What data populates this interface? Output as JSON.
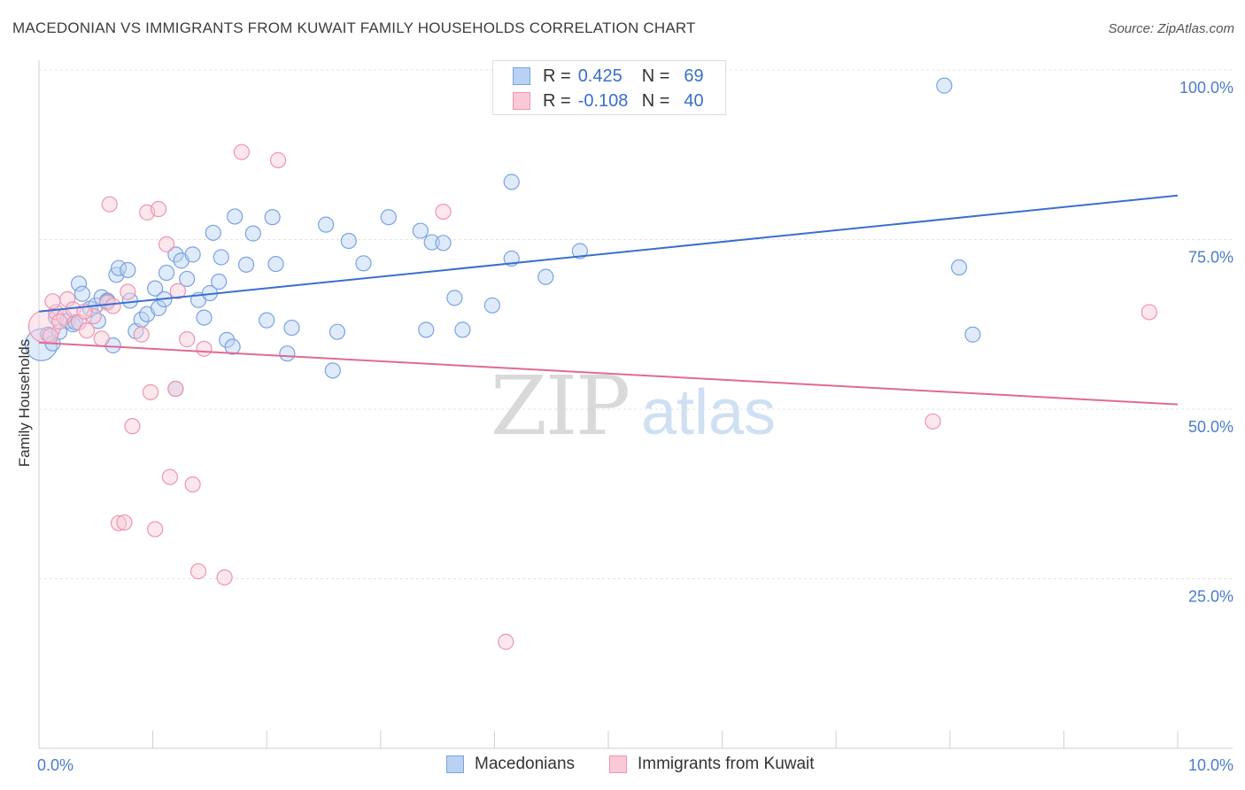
{
  "title": "MACEDONIAN VS IMMIGRANTS FROM KUWAIT FAMILY HOUSEHOLDS CORRELATION CHART",
  "source": "Source: ZipAtlas.com",
  "watermark": {
    "zip": "ZIP",
    "atlas": "atlas"
  },
  "legend": {
    "r_label": "R =",
    "n_label": "N =",
    "rows": [
      {
        "name": "Macedonians",
        "r": "0.425",
        "n": "69",
        "fill": "#b9d2f3",
        "stroke": "#7aa3e0"
      },
      {
        "name": "Immigrants from Kuwait",
        "r": "-0.108",
        "n": "40",
        "fill": "#f9c9d8",
        "stroke": "#ee95b0"
      }
    ]
  },
  "chart_data": {
    "type": "scatter",
    "title": "MACEDONIAN VS IMMIGRANTS FROM KUWAIT FAMILY HOUSEHOLDS CORRELATION CHART",
    "xlabel": "",
    "ylabel": "Family Households",
    "xlim": [
      0,
      10
    ],
    "ylim": [
      0,
      100
    ],
    "x_tick_labels": [
      {
        "value": 0,
        "label": "0.0%"
      },
      {
        "value": 10,
        "label": "10.0%"
      }
    ],
    "y_tick_labels": [
      {
        "value": 25,
        "label": "25.0%"
      },
      {
        "value": 50,
        "label": "50.0%"
      },
      {
        "value": 75,
        "label": "75.0%"
      },
      {
        "value": 100,
        "label": "100.0%"
      }
    ],
    "grid": true,
    "series": [
      {
        "name": "Macedonians",
        "color": "#7aa3e0",
        "fill": "#b9d2f3",
        "line_color": "#3a6fd0",
        "trend": {
          "x0": 0,
          "y0": 64.4,
          "x1": 10,
          "y1": 81.5
        },
        "points": [
          {
            "x": 0.02,
            "y": 59.5,
            "size": 18
          },
          {
            "x": 0.08,
            "y": 61.0
          },
          {
            "x": 0.12,
            "y": 59.7
          },
          {
            "x": 0.15,
            "y": 63.5
          },
          {
            "x": 0.18,
            "y": 61.4
          },
          {
            "x": 0.25,
            "y": 63.0
          },
          {
            "x": 0.3,
            "y": 62.5
          },
          {
            "x": 0.32,
            "y": 62.8
          },
          {
            "x": 0.35,
            "y": 68.5
          },
          {
            "x": 0.38,
            "y": 67.0
          },
          {
            "x": 0.45,
            "y": 64.8
          },
          {
            "x": 0.5,
            "y": 65.3
          },
          {
            "x": 0.52,
            "y": 63.0
          },
          {
            "x": 0.55,
            "y": 66.5
          },
          {
            "x": 0.6,
            "y": 66.0
          },
          {
            "x": 0.65,
            "y": 59.4
          },
          {
            "x": 0.68,
            "y": 69.8
          },
          {
            "x": 0.7,
            "y": 70.8
          },
          {
            "x": 0.78,
            "y": 70.5
          },
          {
            "x": 0.8,
            "y": 66.0
          },
          {
            "x": 0.85,
            "y": 61.5
          },
          {
            "x": 0.9,
            "y": 63.2
          },
          {
            "x": 0.95,
            "y": 64.0
          },
          {
            "x": 1.02,
            "y": 67.8
          },
          {
            "x": 1.05,
            "y": 64.9
          },
          {
            "x": 1.1,
            "y": 66.2
          },
          {
            "x": 1.12,
            "y": 70.1
          },
          {
            "x": 1.2,
            "y": 72.8
          },
          {
            "x": 1.25,
            "y": 71.9
          },
          {
            "x": 1.3,
            "y": 69.2
          },
          {
            "x": 1.35,
            "y": 72.8
          },
          {
            "x": 1.4,
            "y": 66.1
          },
          {
            "x": 1.45,
            "y": 63.5
          },
          {
            "x": 1.5,
            "y": 67.1
          },
          {
            "x": 1.53,
            "y": 76.0
          },
          {
            "x": 1.58,
            "y": 68.8
          },
          {
            "x": 1.6,
            "y": 72.4
          },
          {
            "x": 1.65,
            "y": 60.2
          },
          {
            "x": 1.7,
            "y": 59.2
          },
          {
            "x": 1.72,
            "y": 78.4
          },
          {
            "x": 1.82,
            "y": 71.3
          },
          {
            "x": 1.88,
            "y": 75.9
          },
          {
            "x": 2.0,
            "y": 63.1
          },
          {
            "x": 2.05,
            "y": 78.3
          },
          {
            "x": 2.08,
            "y": 71.4
          },
          {
            "x": 2.18,
            "y": 58.2
          },
          {
            "x": 2.22,
            "y": 62.0
          },
          {
            "x": 2.52,
            "y": 77.2
          },
          {
            "x": 2.58,
            "y": 55.7
          },
          {
            "x": 2.62,
            "y": 61.4
          },
          {
            "x": 2.72,
            "y": 74.8
          },
          {
            "x": 2.85,
            "y": 71.5
          },
          {
            "x": 3.07,
            "y": 78.3
          },
          {
            "x": 3.35,
            "y": 76.3
          },
          {
            "x": 3.4,
            "y": 61.7
          },
          {
            "x": 3.45,
            "y": 74.6
          },
          {
            "x": 3.55,
            "y": 74.5
          },
          {
            "x": 3.65,
            "y": 66.4
          },
          {
            "x": 3.72,
            "y": 61.7
          },
          {
            "x": 3.98,
            "y": 65.3
          },
          {
            "x": 4.15,
            "y": 72.2
          },
          {
            "x": 4.15,
            "y": 83.5
          },
          {
            "x": 4.45,
            "y": 69.5
          },
          {
            "x": 4.75,
            "y": 73.3
          },
          {
            "x": 7.95,
            "y": 97.7
          },
          {
            "x": 8.08,
            "y": 70.9
          },
          {
            "x": 8.2,
            "y": 61.0
          },
          {
            "x": 1.2,
            "y": 53.0
          },
          {
            "x": 0.6,
            "y": 65.9
          }
        ]
      },
      {
        "name": "Immigrants from Kuwait",
        "color": "#ee95b0",
        "fill": "#f9c9d8",
        "line_color": "#e06a94",
        "trend": {
          "x0": 0,
          "y0": 59.8,
          "x1": 10,
          "y1": 50.7
        },
        "points": [
          {
            "x": 0.05,
            "y": 62.2,
            "size": 18
          },
          {
            "x": 0.1,
            "y": 60.8
          },
          {
            "x": 0.15,
            "y": 64.3
          },
          {
            "x": 0.22,
            "y": 63.6
          },
          {
            "x": 0.25,
            "y": 66.2
          },
          {
            "x": 0.3,
            "y": 64.7
          },
          {
            "x": 0.35,
            "y": 62.8
          },
          {
            "x": 0.42,
            "y": 61.6
          },
          {
            "x": 0.48,
            "y": 63.7
          },
          {
            "x": 0.55,
            "y": 60.4
          },
          {
            "x": 0.6,
            "y": 65.7
          },
          {
            "x": 0.62,
            "y": 80.2
          },
          {
            "x": 0.7,
            "y": 33.2
          },
          {
            "x": 0.75,
            "y": 33.3
          },
          {
            "x": 0.78,
            "y": 67.3
          },
          {
            "x": 0.82,
            "y": 47.5
          },
          {
            "x": 0.9,
            "y": 61.0
          },
          {
            "x": 0.95,
            "y": 79.0
          },
          {
            "x": 0.98,
            "y": 52.5
          },
          {
            "x": 1.02,
            "y": 32.3
          },
          {
            "x": 1.05,
            "y": 79.5
          },
          {
            "x": 1.12,
            "y": 74.3
          },
          {
            "x": 1.15,
            "y": 40.0
          },
          {
            "x": 1.2,
            "y": 53.0
          },
          {
            "x": 1.22,
            "y": 67.4
          },
          {
            "x": 1.3,
            "y": 60.3
          },
          {
            "x": 1.35,
            "y": 38.9
          },
          {
            "x": 1.4,
            "y": 26.1
          },
          {
            "x": 1.45,
            "y": 58.9
          },
          {
            "x": 1.63,
            "y": 25.2
          },
          {
            "x": 1.78,
            "y": 87.9
          },
          {
            "x": 2.1,
            "y": 86.7
          },
          {
            "x": 3.55,
            "y": 79.1
          },
          {
            "x": 4.1,
            "y": 15.7
          },
          {
            "x": 7.85,
            "y": 48.2
          },
          {
            "x": 9.75,
            "y": 64.3
          },
          {
            "x": 0.18,
            "y": 62.9
          },
          {
            "x": 0.4,
            "y": 64.4
          },
          {
            "x": 0.12,
            "y": 65.9
          },
          {
            "x": 0.65,
            "y": 65.2
          }
        ]
      }
    ]
  }
}
